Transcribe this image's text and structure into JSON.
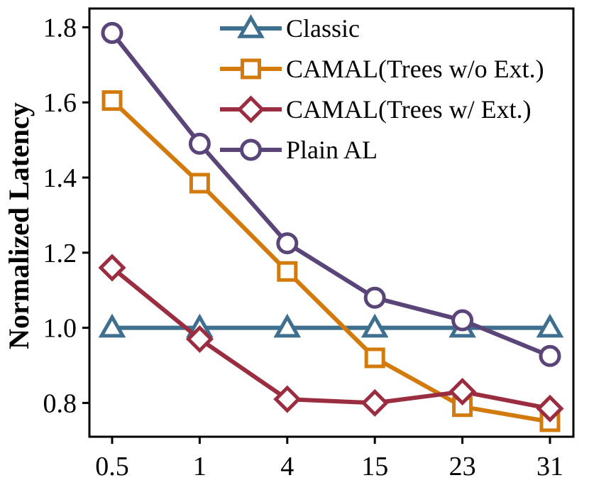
{
  "chart_data": {
    "type": "line",
    "title": "",
    "xlabel": "",
    "ylabel": "Normalized Latency",
    "categories": [
      "0.5",
      "1",
      "4",
      "15",
      "23",
      "31"
    ],
    "ylim": [
      0.71,
      1.85
    ],
    "yticks": [
      0.8,
      1.0,
      1.2,
      1.4,
      1.6,
      1.8
    ],
    "ytick_labels": [
      "0.8",
      "1.0",
      "1.2",
      "1.4",
      "1.6",
      "1.8"
    ],
    "grid": false,
    "legend_position": "top-right",
    "series": [
      {
        "name": "Classic",
        "color": "#3e6f8f",
        "marker": "triangle",
        "values": [
          1.0,
          1.0,
          1.0,
          1.0,
          1.0,
          1.0
        ]
      },
      {
        "name": "CAMAL(Trees w/o Ext.)",
        "color": "#d27a0c",
        "marker": "square",
        "values": [
          1.605,
          1.385,
          1.15,
          0.92,
          0.79,
          0.75
        ]
      },
      {
        "name": "CAMAL(Trees w/ Ext.)",
        "color": "#9b2d40",
        "marker": "diamond",
        "values": [
          1.16,
          0.97,
          0.81,
          0.8,
          0.83,
          0.785
        ]
      },
      {
        "name": "Plain AL",
        "color": "#5a4579",
        "marker": "circle",
        "values": [
          1.785,
          1.49,
          1.225,
          1.08,
          1.02,
          0.925
        ]
      }
    ]
  }
}
